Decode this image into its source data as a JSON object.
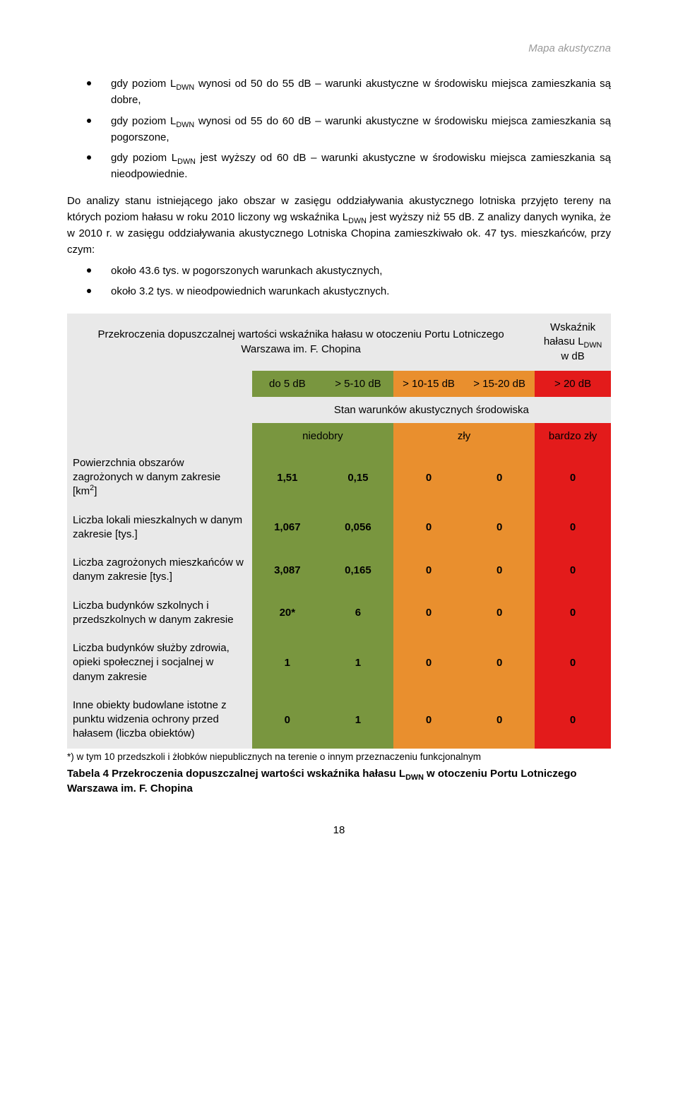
{
  "header": {
    "title": "Mapa akustyczna"
  },
  "bullets": [
    "gdy poziom L<sub>DWN</sub>  wynosi od 50 do 55 dB – warunki akustyczne w środowisku miejsca zamieszkania są dobre,",
    "gdy poziom L<sub>DWN</sub>  wynosi od 55 do 60 dB – warunki akustyczne w środowisku miejsca zamieszkania są pogorszone,",
    "gdy poziom L<sub>DWN</sub> jest wyższy od 60 dB – warunki akustyczne w środowisku miejsca zamieszkania są nieodpowiednie."
  ],
  "para1": "Do analizy stanu istniejącego jako obszar w zasięgu oddziaływania akustycznego lotniska przyjęto tereny na których poziom hałasu w roku 2010 liczony wg wskaźnika  L<sub>DWN</sub> jest wyższy niż 55 dB. Z analizy danych wynika, że w 2010 r. w zasięgu oddziaływania akustycznego Lotniska Chopina zamieszkiwało ok. 47 tys. mieszkańców, przy czym:",
  "bullets2": [
    "około 43.6 tys. w pogorszonych warunkach akustycznych,",
    "około 3.2 tys. w nieodpowiednich warunkach akustycznych."
  ],
  "table": {
    "title": "Przekroczenia dopuszczalnej wartości wskaźnika hałasu w otoczeniu Portu Lotniczego Warszawa im. F. Chopina",
    "wsk_label": "Wskaźnik hałasu L<sub>DWN</sub> w dB",
    "range_headers": [
      "do 5 dB",
      "> 5-10 dB",
      "> 10-15 dB",
      "> 15-20 dB",
      "> 20 dB"
    ],
    "stan_header": "Stan warunków akustycznych środowiska",
    "quality_labels": {
      "niedobry": "niedobry",
      "zly": "zły",
      "bardzo": "bardzo zły"
    },
    "colors": {
      "grey": "#e9e9e9",
      "green": "#79963f",
      "orange": "#e98f2e",
      "red": "#e31b1b"
    },
    "rows": [
      {
        "label": "Powierzchnia obszarów zagrożonych w danym zakresie [km<sup>2</sup>]",
        "vals": [
          "1,51",
          "0,15",
          "0",
          "0",
          "0"
        ]
      },
      {
        "label": "Liczba lokali mieszkalnych w danym zakresie [tys.]",
        "vals": [
          "1,067",
          "0,056",
          "0",
          "0",
          "0"
        ]
      },
      {
        "label": "Liczba zagrożonych mieszkańców w danym zakresie [tys.]",
        "vals": [
          "3,087",
          "0,165",
          "0",
          "0",
          "0"
        ]
      },
      {
        "label": "Liczba budynków szkolnych i przedszkolnych w danym zakresie",
        "vals": [
          "20*",
          "6",
          "0",
          "0",
          "0"
        ]
      },
      {
        "label": "Liczba budynków służby zdrowia, opieki społecznej i socjalnej w danym zakresie",
        "vals": [
          "1",
          "1",
          "0",
          "0",
          "0"
        ]
      },
      {
        "label": "Inne obiekty budowlane istotne z punktu widzenia ochrony przed hałasem (liczba obiektów)",
        "vals": [
          "0",
          "1",
          "0",
          "0",
          "0"
        ]
      }
    ]
  },
  "footnote": "*) w tym 10 przedszkoli i żłobków niepublicznych na terenie o innym przeznaczeniu funkcjonalnym",
  "caption_prefix": "Tabela 4  ",
  "caption": "Przekroczenia dopuszczalnej wartości wskaźnika hałasu L<sub>DWN</sub> w otoczeniu Portu Lotniczego Warszawa im. F. Chopina",
  "page_number": "18"
}
